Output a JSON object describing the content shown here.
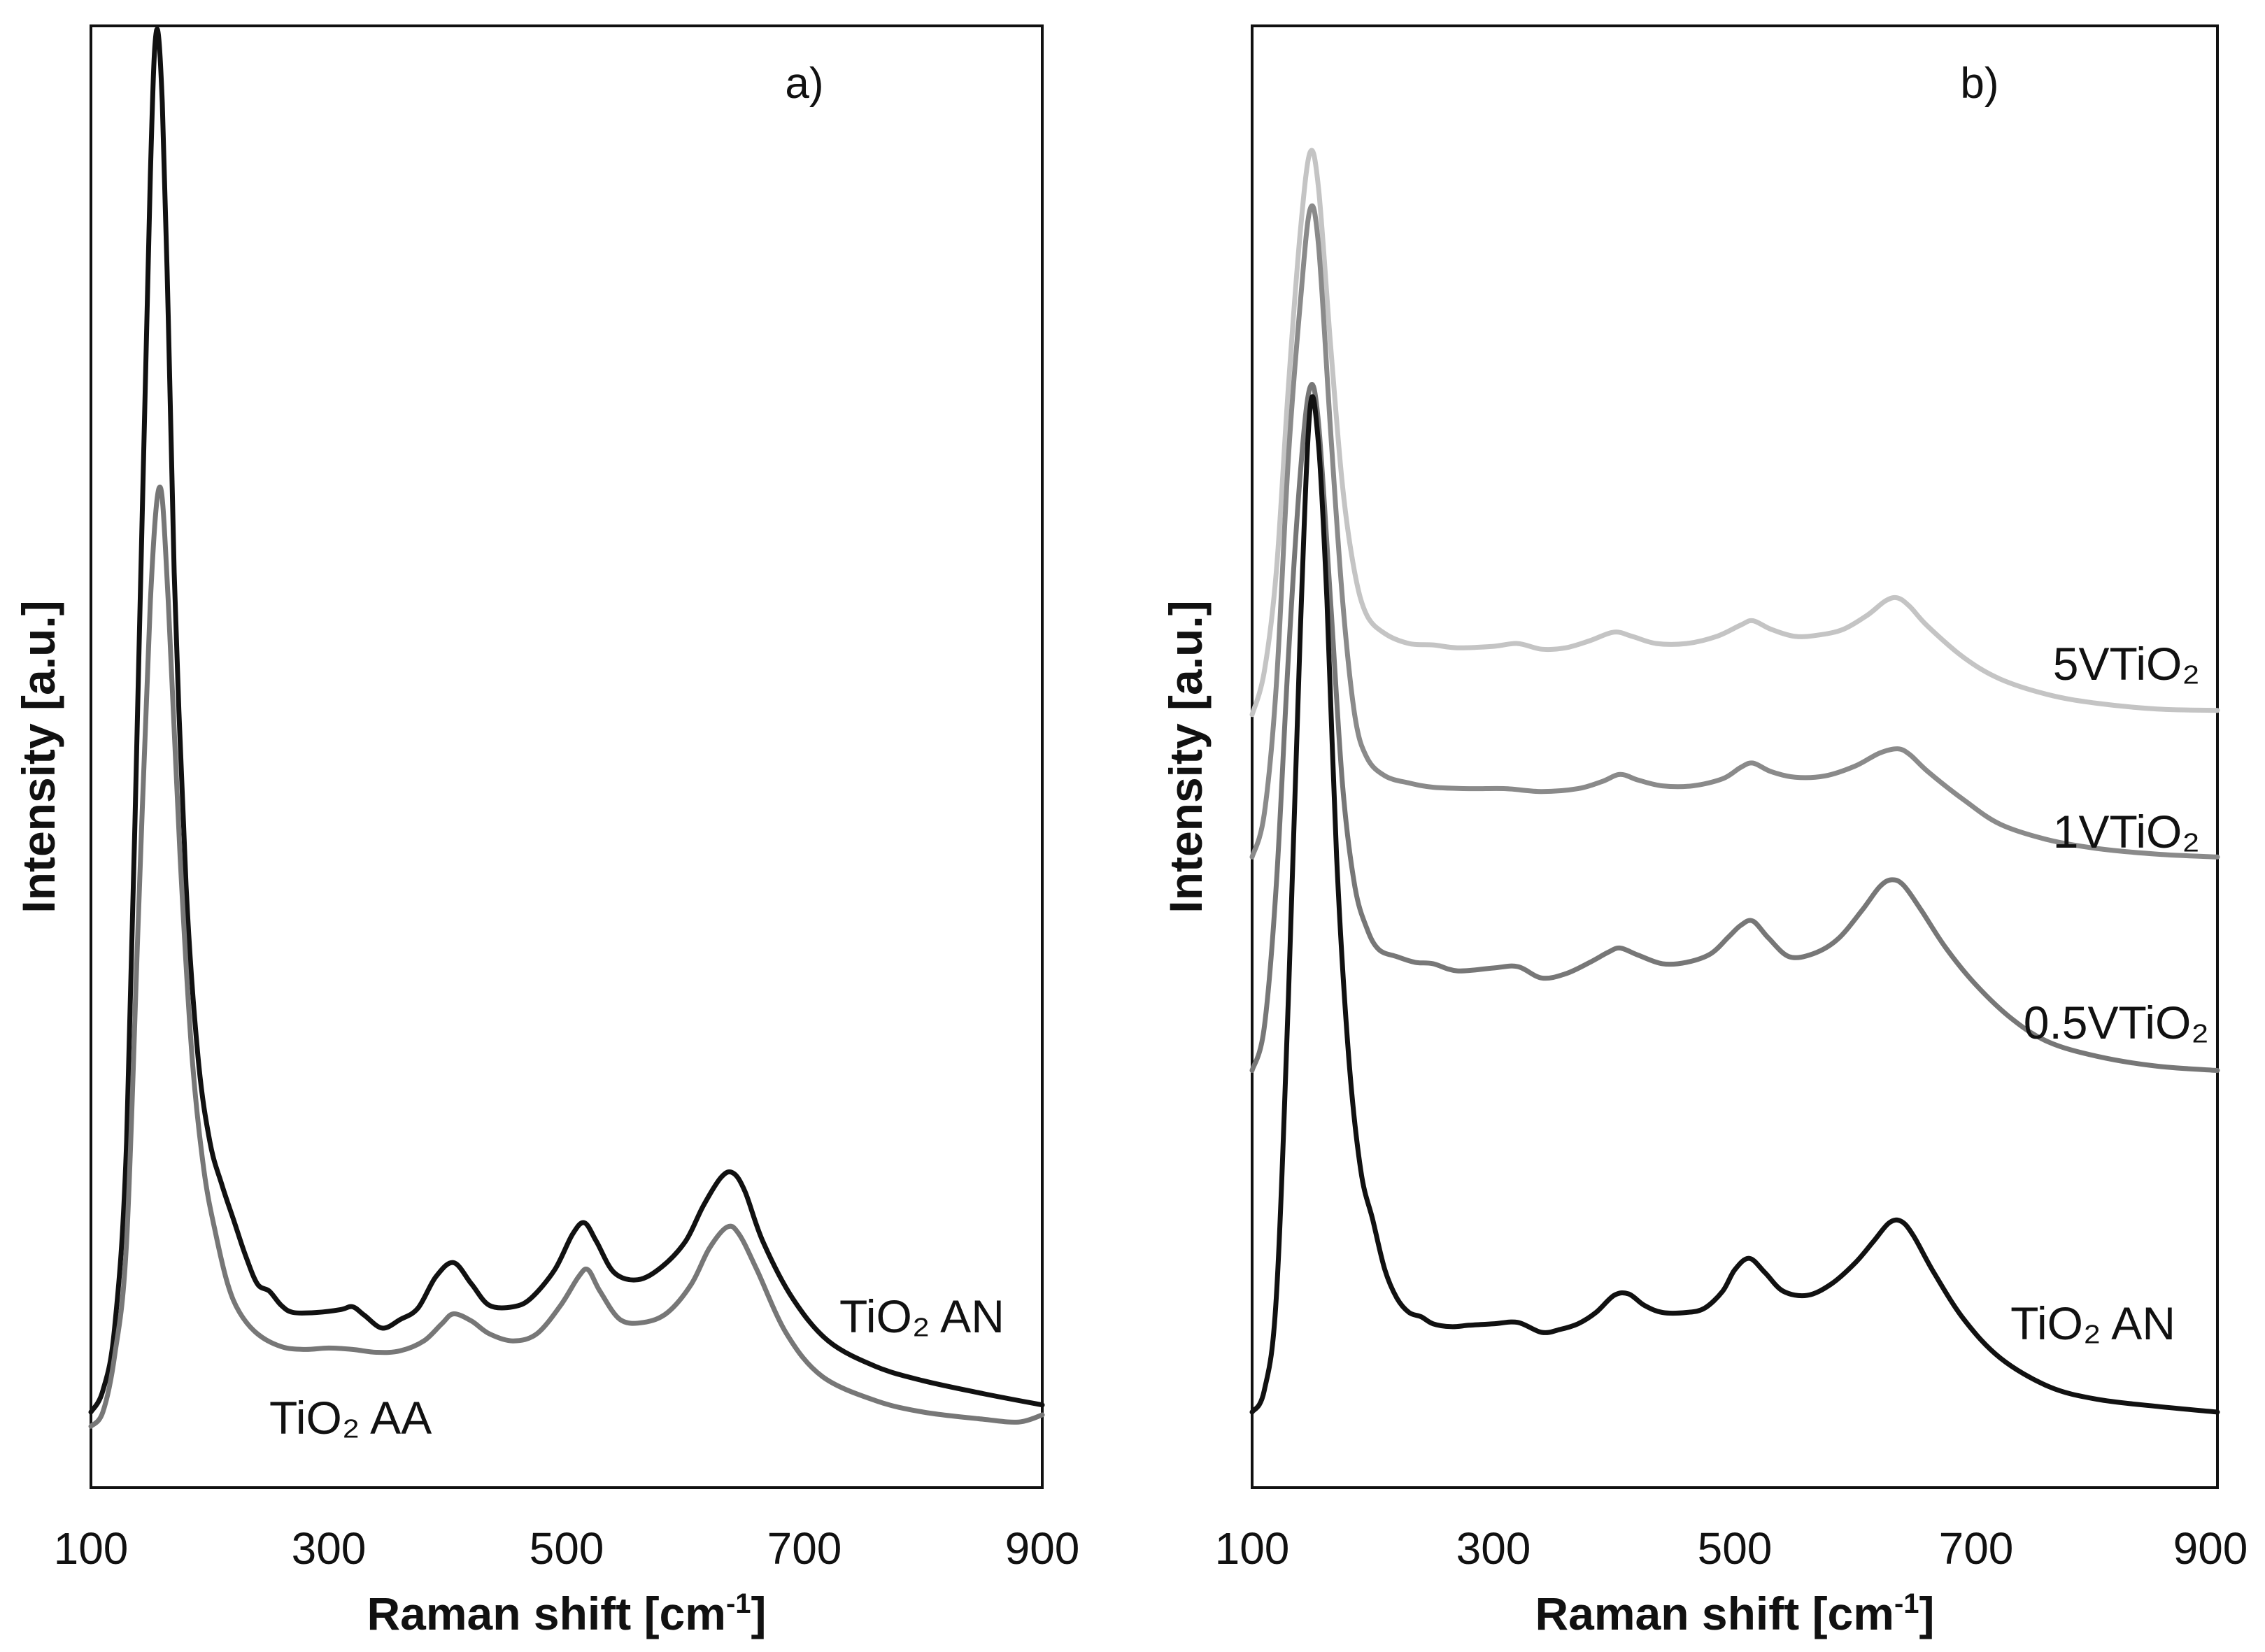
{
  "colors": {
    "black": "#111111",
    "gray": "#777777",
    "mid_gray": "#8a8a8a",
    "light_gray": "#c4c4c4"
  },
  "chart_data": [
    {
      "type": "line",
      "panel_label": "a)",
      "xlabel": "Raman shift [cm",
      "xlabel_sup": "-1",
      "xlabel_end": "]",
      "ylabel": "Intensity [a.u.]",
      "xlim": [
        100,
        900
      ],
      "ylim": [
        0,
        100
      ],
      "xticks": [
        "100",
        "300",
        "500",
        "700",
        "900"
      ],
      "series": [
        {
          "name": "TiO₂ AN",
          "color_key": "black",
          "points": [
            [
              100,
              3
            ],
            [
              110,
              4.5
            ],
            [
              120,
              9
            ],
            [
              130,
              22
            ],
            [
              140,
              55
            ],
            [
              150,
              90
            ],
            [
              155,
              100
            ],
            [
              160,
              95
            ],
            [
              165,
              80
            ],
            [
              170,
              62
            ],
            [
              180,
              40
            ],
            [
              190,
              28
            ],
            [
              200,
              22
            ],
            [
              210,
              19
            ],
            [
              220,
              16.5
            ],
            [
              230,
              14
            ],
            [
              240,
              12
            ],
            [
              250,
              11.5
            ],
            [
              260,
              10.5
            ],
            [
              270,
              10
            ],
            [
              290,
              10
            ],
            [
              310,
              10.2
            ],
            [
              320,
              10.4
            ],
            [
              330,
              9.8
            ],
            [
              345,
              8.9
            ],
            [
              360,
              9.5
            ],
            [
              375,
              10.3
            ],
            [
              390,
              12.5
            ],
            [
              405,
              13.5
            ],
            [
              420,
              12
            ],
            [
              435,
              10.5
            ],
            [
              455,
              10.4
            ],
            [
              470,
              11
            ],
            [
              490,
              13
            ],
            [
              505,
              15.5
            ],
            [
              515,
              16.3
            ],
            [
              525,
              15
            ],
            [
              540,
              12.8
            ],
            [
              560,
              12.3
            ],
            [
              580,
              13.2
            ],
            [
              600,
              15
            ],
            [
              615,
              17.5
            ],
            [
              630,
              19.5
            ],
            [
              640,
              19.8
            ],
            [
              650,
              18.5
            ],
            [
              665,
              15
            ],
            [
              690,
              11
            ],
            [
              720,
              8
            ],
            [
              760,
              6.2
            ],
            [
              800,
              5.2
            ],
            [
              850,
              4.3
            ],
            [
              900,
              3.5
            ]
          ]
        },
        {
          "name": "TiO₂ AA",
          "color_key": "gray",
          "points": [
            [
              100,
              2
            ],
            [
              110,
              3
            ],
            [
              120,
              7
            ],
            [
              130,
              15
            ],
            [
              140,
              38
            ],
            [
              150,
              60
            ],
            [
              158,
              68
            ],
            [
              165,
              60
            ],
            [
              175,
              42
            ],
            [
              185,
              28
            ],
            [
              195,
              20
            ],
            [
              205,
              15.5
            ],
            [
              215,
              12
            ],
            [
              225,
              10
            ],
            [
              240,
              8.5
            ],
            [
              260,
              7.6
            ],
            [
              280,
              7.4
            ],
            [
              300,
              7.5
            ],
            [
              320,
              7.4
            ],
            [
              340,
              7.2
            ],
            [
              360,
              7.3
            ],
            [
              380,
              8
            ],
            [
              395,
              9.2
            ],
            [
              405,
              9.9
            ],
            [
              420,
              9.4
            ],
            [
              435,
              8.5
            ],
            [
              455,
              8
            ],
            [
              475,
              8.5
            ],
            [
              495,
              10.5
            ],
            [
              510,
              12.5
            ],
            [
              518,
              13
            ],
            [
              528,
              11.5
            ],
            [
              545,
              9.5
            ],
            [
              565,
              9.3
            ],
            [
              585,
              10
            ],
            [
              605,
              12
            ],
            [
              620,
              14.5
            ],
            [
              635,
              16
            ],
            [
              645,
              15.5
            ],
            [
              660,
              13
            ],
            [
              685,
              8.5
            ],
            [
              715,
              5.5
            ],
            [
              760,
              3.8
            ],
            [
              800,
              3
            ],
            [
              850,
              2.5
            ],
            [
              880,
              2.3
            ],
            [
              900,
              2.8
            ]
          ]
        }
      ]
    },
    {
      "type": "line",
      "panel_label": "b)",
      "xlabel": "Raman shift [cm",
      "xlabel_sup": "-1",
      "xlabel_end": "]",
      "ylabel": "Intensity [a.u.]",
      "xlim": [
        100,
        900
      ],
      "ylim": [
        0,
        100
      ],
      "xticks": [
        "100",
        "300",
        "500",
        "700",
        "900"
      ],
      "series": [
        {
          "name": "5VTiO₂",
          "color_key": "light_gray",
          "points": [
            [
              100,
              52
            ],
            [
              110,
              55
            ],
            [
              120,
              62
            ],
            [
              130,
              75
            ],
            [
              140,
              86
            ],
            [
              148,
              91.5
            ],
            [
              155,
              89
            ],
            [
              165,
              78
            ],
            [
              175,
              68
            ],
            [
              185,
              62
            ],
            [
              195,
              59
            ],
            [
              210,
              57.7
            ],
            [
              230,
              57
            ],
            [
              250,
              56.9
            ],
            [
              270,
              56.7
            ],
            [
              300,
              56.8
            ],
            [
              320,
              57
            ],
            [
              340,
              56.6
            ],
            [
              360,
              56.7
            ],
            [
              380,
              57.2
            ],
            [
              400,
              57.8
            ],
            [
              415,
              57.5
            ],
            [
              435,
              57
            ],
            [
              460,
              57
            ],
            [
              485,
              57.5
            ],
            [
              505,
              58.3
            ],
            [
              515,
              58.6
            ],
            [
              530,
              58
            ],
            [
              550,
              57.5
            ],
            [
              570,
              57.6
            ],
            [
              590,
              58
            ],
            [
              610,
              59
            ],
            [
              625,
              60
            ],
            [
              635,
              60.2
            ],
            [
              645,
              59.6
            ],
            [
              660,
              58.2
            ],
            [
              690,
              56
            ],
            [
              720,
              54.5
            ],
            [
              760,
              53.4
            ],
            [
              800,
              52.8
            ],
            [
              850,
              52.4
            ],
            [
              900,
              52.3
            ]
          ]
        },
        {
          "name": "1VTiO₂",
          "color_key": "mid_gray",
          "points": [
            [
              100,
              42
            ],
            [
              110,
              45
            ],
            [
              120,
              54
            ],
            [
              130,
              70
            ],
            [
              140,
              81
            ],
            [
              148,
              87.5
            ],
            [
              155,
              85
            ],
            [
              165,
              72
            ],
            [
              175,
              60
            ],
            [
              185,
              52
            ],
            [
              195,
              49
            ],
            [
              210,
              47.7
            ],
            [
              230,
              47.2
            ],
            [
              250,
              46.9
            ],
            [
              280,
              46.8
            ],
            [
              310,
              46.8
            ],
            [
              340,
              46.6
            ],
            [
              370,
              46.8
            ],
            [
              390,
              47.3
            ],
            [
              405,
              47.8
            ],
            [
              420,
              47.4
            ],
            [
              440,
              47
            ],
            [
              465,
              47
            ],
            [
              490,
              47.5
            ],
            [
              505,
              48.3
            ],
            [
              515,
              48.6
            ],
            [
              530,
              48
            ],
            [
              550,
              47.6
            ],
            [
              575,
              47.7
            ],
            [
              600,
              48.4
            ],
            [
              620,
              49.3
            ],
            [
              635,
              49.6
            ],
            [
              645,
              49.2
            ],
            [
              660,
              48
            ],
            [
              690,
              46
            ],
            [
              720,
              44.3
            ],
            [
              760,
              43.2
            ],
            [
              800,
              42.6
            ],
            [
              850,
              42.2
            ],
            [
              900,
              42
            ]
          ]
        },
        {
          "name": "0.5VTiO₂",
          "color_key": "gray",
          "points": [
            [
              100,
              27
            ],
            [
              110,
              30
            ],
            [
              120,
              40
            ],
            [
              130,
              56
            ],
            [
              140,
              69
            ],
            [
              148,
              75
            ],
            [
              155,
              72.5
            ],
            [
              165,
              60
            ],
            [
              175,
              47
            ],
            [
              185,
              40
            ],
            [
              195,
              37
            ],
            [
              205,
              35.5
            ],
            [
              220,
              35
            ],
            [
              235,
              34.6
            ],
            [
              250,
              34.5
            ],
            [
              270,
              34
            ],
            [
              300,
              34.2
            ],
            [
              320,
              34.3
            ],
            [
              340,
              33.5
            ],
            [
              360,
              33.8
            ],
            [
              380,
              34.6
            ],
            [
              395,
              35.3
            ],
            [
              405,
              35.6
            ],
            [
              420,
              35.1
            ],
            [
              440,
              34.5
            ],
            [
              460,
              34.6
            ],
            [
              480,
              35.2
            ],
            [
              495,
              36.4
            ],
            [
              505,
              37.2
            ],
            [
              515,
              37.5
            ],
            [
              528,
              36.3
            ],
            [
              545,
              35
            ],
            [
              565,
              35.2
            ],
            [
              585,
              36.2
            ],
            [
              605,
              38.2
            ],
            [
              620,
              39.9
            ],
            [
              630,
              40.4
            ],
            [
              640,
              40
            ],
            [
              655,
              38.2
            ],
            [
              675,
              35.6
            ],
            [
              700,
              33
            ],
            [
              730,
              30.6
            ],
            [
              760,
              29
            ],
            [
              800,
              28
            ],
            [
              850,
              27.3
            ],
            [
              900,
              27
            ]
          ]
        },
        {
          "name": "TiO₂ AN",
          "color_key": "black",
          "points": [
            [
              100,
              3
            ],
            [
              110,
              4.5
            ],
            [
              120,
              11
            ],
            [
              130,
              32
            ],
            [
              140,
              58
            ],
            [
              148,
              73.5
            ],
            [
              155,
              71
            ],
            [
              162,
              60
            ],
            [
              170,
              42
            ],
            [
              180,
              28
            ],
            [
              190,
              20
            ],
            [
              200,
              16.5
            ],
            [
              210,
              13
            ],
            [
              220,
              11
            ],
            [
              230,
              10
            ],
            [
              240,
              9.7
            ],
            [
              250,
              9.2
            ],
            [
              265,
              9
            ],
            [
              280,
              9.1
            ],
            [
              300,
              9.2
            ],
            [
              320,
              9.3
            ],
            [
              340,
              8.6
            ],
            [
              355,
              8.8
            ],
            [
              370,
              9.2
            ],
            [
              385,
              10
            ],
            [
              400,
              11.2
            ],
            [
              412,
              11.3
            ],
            [
              425,
              10.5
            ],
            [
              440,
              10
            ],
            [
              460,
              10
            ],
            [
              475,
              10.3
            ],
            [
              490,
              11.5
            ],
            [
              500,
              13
            ],
            [
              512,
              13.8
            ],
            [
              525,
              12.8
            ],
            [
              540,
              11.5
            ],
            [
              560,
              11.2
            ],
            [
              580,
              12
            ],
            [
              600,
              13.5
            ],
            [
              615,
              15
            ],
            [
              628,
              16.3
            ],
            [
              638,
              16.4
            ],
            [
              648,
              15.4
            ],
            [
              665,
              12.8
            ],
            [
              690,
              9.5
            ],
            [
              720,
              6.8
            ],
            [
              760,
              4.8
            ],
            [
              800,
              3.9
            ],
            [
              850,
              3.4
            ],
            [
              900,
              3
            ]
          ]
        }
      ]
    }
  ]
}
